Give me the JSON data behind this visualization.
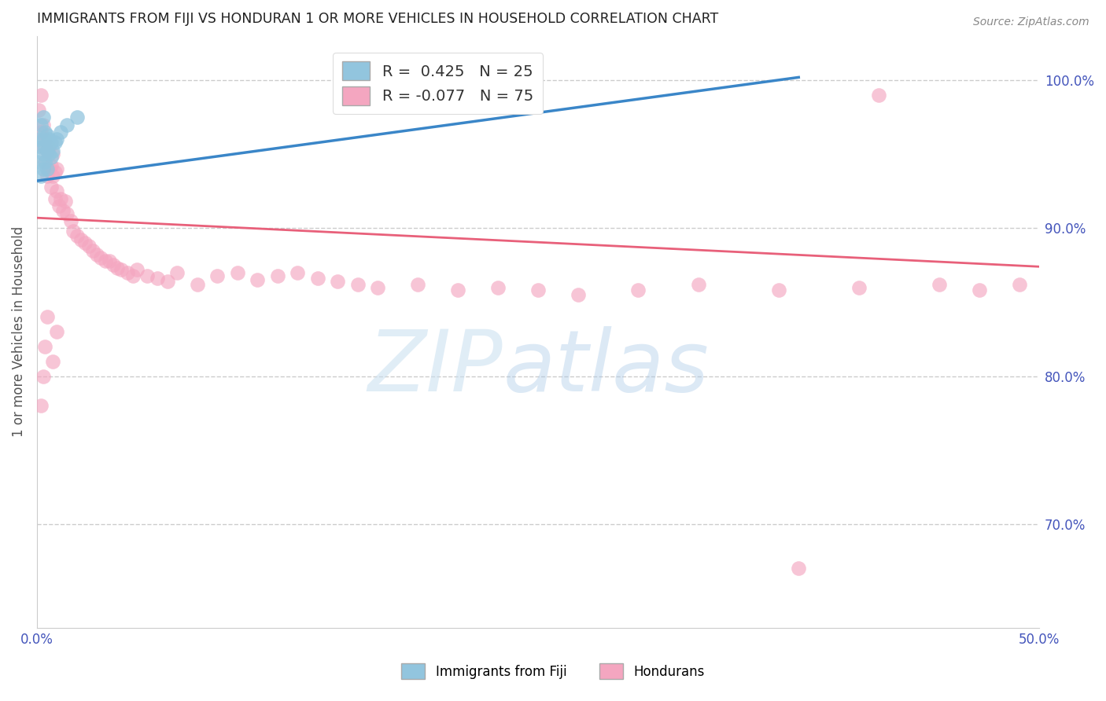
{
  "title": "IMMIGRANTS FROM FIJI VS HONDURAN 1 OR MORE VEHICLES IN HOUSEHOLD CORRELATION CHART",
  "source": "Source: ZipAtlas.com",
  "ylabel": "1 or more Vehicles in Household",
  "x_min": 0.0,
  "x_max": 0.5,
  "y_min": 0.63,
  "y_max": 1.03,
  "x_ticks": [
    0.0,
    0.1,
    0.2,
    0.3,
    0.4,
    0.5
  ],
  "x_tick_labels": [
    "0.0%",
    "",
    "",
    "",
    "",
    "50.0%"
  ],
  "y_ticks_right": [
    1.0,
    0.9,
    0.8,
    0.7
  ],
  "y_tick_labels_right": [
    "100.0%",
    "90.0%",
    "80.0%",
    "70.0%"
  ],
  "fiji_R": 0.425,
  "fiji_N": 25,
  "honduran_R": -0.077,
  "honduran_N": 75,
  "fiji_color": "#92c5de",
  "honduran_color": "#f4a6c0",
  "fiji_line_color": "#3a86c8",
  "honduran_line_color": "#e8607a",
  "fiji_x": [
    0.001,
    0.001,
    0.002,
    0.002,
    0.002,
    0.003,
    0.003,
    0.003,
    0.003,
    0.004,
    0.004,
    0.004,
    0.005,
    0.005,
    0.005,
    0.006,
    0.006,
    0.007,
    0.007,
    0.008,
    0.009,
    0.01,
    0.012,
    0.015,
    0.02
  ],
  "fiji_y": [
    0.945,
    0.96,
    0.935,
    0.955,
    0.97,
    0.94,
    0.95,
    0.96,
    0.975,
    0.945,
    0.955,
    0.965,
    0.94,
    0.952,
    0.963,
    0.95,
    0.96,
    0.948,
    0.958,
    0.952,
    0.958,
    0.96,
    0.965,
    0.97,
    0.975
  ],
  "honduran_x": [
    0.001,
    0.002,
    0.002,
    0.003,
    0.003,
    0.004,
    0.004,
    0.005,
    0.005,
    0.006,
    0.006,
    0.007,
    0.007,
    0.008,
    0.008,
    0.009,
    0.009,
    0.01,
    0.01,
    0.011,
    0.012,
    0.013,
    0.014,
    0.015,
    0.017,
    0.018,
    0.02,
    0.022,
    0.024,
    0.026,
    0.028,
    0.03,
    0.032,
    0.034,
    0.036,
    0.038,
    0.04,
    0.042,
    0.045,
    0.048,
    0.05,
    0.055,
    0.06,
    0.065,
    0.07,
    0.08,
    0.09,
    0.1,
    0.11,
    0.12,
    0.13,
    0.14,
    0.15,
    0.16,
    0.17,
    0.19,
    0.21,
    0.23,
    0.25,
    0.27,
    0.3,
    0.33,
    0.37,
    0.41,
    0.45,
    0.47,
    0.49,
    0.002,
    0.003,
    0.004,
    0.005,
    0.008,
    0.01,
    0.42,
    0.38
  ],
  "honduran_y": [
    0.98,
    0.965,
    0.99,
    0.955,
    0.97,
    0.945,
    0.96,
    0.935,
    0.952,
    0.94,
    0.955,
    0.928,
    0.942,
    0.935,
    0.95,
    0.92,
    0.938,
    0.925,
    0.94,
    0.915,
    0.92,
    0.912,
    0.918,
    0.91,
    0.905,
    0.898,
    0.895,
    0.892,
    0.89,
    0.888,
    0.885,
    0.882,
    0.88,
    0.878,
    0.878,
    0.875,
    0.873,
    0.872,
    0.87,
    0.868,
    0.872,
    0.868,
    0.866,
    0.864,
    0.87,
    0.862,
    0.868,
    0.87,
    0.865,
    0.868,
    0.87,
    0.866,
    0.864,
    0.862,
    0.86,
    0.862,
    0.858,
    0.86,
    0.858,
    0.855,
    0.858,
    0.862,
    0.858,
    0.86,
    0.862,
    0.858,
    0.862,
    0.78,
    0.8,
    0.82,
    0.84,
    0.81,
    0.83,
    0.99,
    0.67
  ],
  "watermark_zip": "ZIP",
  "watermark_atlas": "atlas",
  "legend_fiji": "Immigrants from Fiji",
  "legend_honduran": "Hondurans",
  "background_color": "#ffffff",
  "grid_color": "#cccccc"
}
